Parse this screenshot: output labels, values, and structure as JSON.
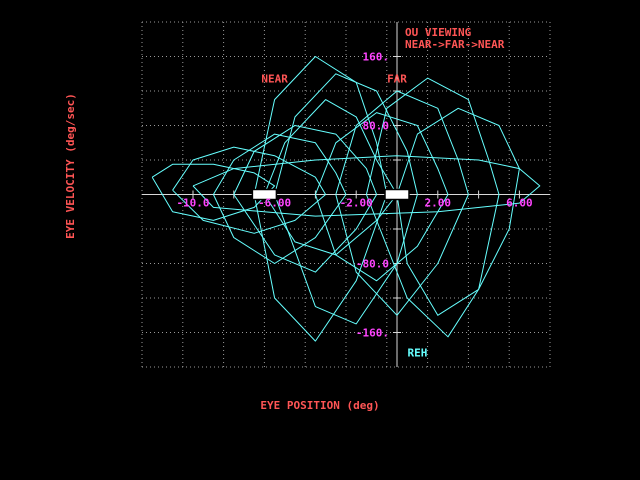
{
  "chart_data": {
    "type": "line",
    "title_lines": [
      "OU VIEWING",
      "NEAR->FAR->NEAR"
    ],
    "xlabel": "EYE POSITION (deg)",
    "ylabel": "EYE VELOCITY (deg/sec)",
    "xlim": [
      -12.5,
      7.5
    ],
    "ylim": [
      -200,
      200
    ],
    "grid": true,
    "x_ticks": [
      {
        "value": -10,
        "label": "-10.0"
      },
      {
        "value": -6,
        "label": "-6.00"
      },
      {
        "value": -2,
        "label": "-2.00"
      },
      {
        "value": 2,
        "label": "2.00"
      },
      {
        "value": 6,
        "label": "6.00"
      }
    ],
    "y_ticks": [
      {
        "value": 160,
        "label": "160."
      },
      {
        "value": 80,
        "label": "80.0"
      },
      {
        "value": -80,
        "label": "-80.0"
      },
      {
        "value": -160,
        "label": "-160."
      }
    ],
    "annotations": [
      {
        "text": "NEAR",
        "x": -6,
        "y": 130
      },
      {
        "text": "FAR",
        "x": 0,
        "y": 130
      },
      {
        "text": "REH",
        "x": 1,
        "y": -188
      }
    ],
    "markers": [
      {
        "name": "near-target",
        "x": -6.5,
        "y": 0
      },
      {
        "name": "far-target",
        "x": 0,
        "y": 0
      }
    ],
    "series": [
      {
        "values": [
          [
            -6.5,
            0
          ],
          [
            -5.5,
            60
          ],
          [
            -3.5,
            110
          ],
          [
            -2,
            90
          ],
          [
            -1,
            40
          ],
          [
            0,
            0
          ],
          [
            -1,
            -30
          ],
          [
            -3,
            -70
          ],
          [
            -5,
            -55
          ],
          [
            -6.5,
            0
          ]
        ]
      },
      {
        "values": [
          [
            -8,
            0
          ],
          [
            -7,
            50
          ],
          [
            -5,
            80
          ],
          [
            -3,
            70
          ],
          [
            -1.5,
            30
          ],
          [
            -1,
            0
          ],
          [
            -2,
            -40
          ],
          [
            -4,
            -90
          ],
          [
            -6,
            -70
          ],
          [
            -8,
            0
          ]
        ]
      },
      {
        "values": [
          [
            -3,
            0
          ],
          [
            -2,
            80
          ],
          [
            0,
            120
          ],
          [
            2,
            100
          ],
          [
            3,
            40
          ],
          [
            3.5,
            0
          ],
          [
            2,
            -80
          ],
          [
            0,
            -140
          ],
          [
            -2,
            -90
          ],
          [
            -3,
            0
          ]
        ]
      },
      {
        "values": [
          [
            -1.5,
            0
          ],
          [
            -0.5,
            100
          ],
          [
            1.5,
            135
          ],
          [
            3.5,
            110
          ],
          [
            4.5,
            40
          ],
          [
            5,
            0
          ],
          [
            4,
            -110
          ],
          [
            2.5,
            -165
          ],
          [
            0.5,
            -120
          ],
          [
            -1.5,
            0
          ]
        ]
      },
      {
        "values": [
          [
            -9,
            0
          ],
          [
            -8,
            40
          ],
          [
            -6,
            70
          ],
          [
            -4,
            60
          ],
          [
            -3,
            25
          ],
          [
            -2.5,
            0
          ],
          [
            -4,
            -50
          ],
          [
            -6,
            -80
          ],
          [
            -8,
            -50
          ],
          [
            -9,
            0
          ]
        ]
      },
      {
        "values": [
          [
            -11,
            5
          ],
          [
            -10,
            40
          ],
          [
            -8,
            55
          ],
          [
            -6,
            45
          ],
          [
            -4,
            20
          ],
          [
            -3.5,
            0
          ],
          [
            -5,
            -30
          ],
          [
            -7,
            -45
          ],
          [
            -9.5,
            -30
          ],
          [
            -11,
            5
          ]
        ]
      },
      {
        "values": [
          [
            -6,
            0
          ],
          [
            -5,
            90
          ],
          [
            -3,
            140
          ],
          [
            -1,
            120
          ],
          [
            0.5,
            50
          ],
          [
            1,
            0
          ],
          [
            0,
            -80
          ],
          [
            -2,
            -150
          ],
          [
            -4,
            -130
          ],
          [
            -6,
            0
          ]
        ]
      },
      {
        "values": [
          [
            -10,
            10
          ],
          [
            -8,
            30
          ],
          [
            -4,
            40
          ],
          [
            0,
            45
          ],
          [
            4,
            40
          ],
          [
            6,
            30
          ],
          [
            7,
            10
          ],
          [
            6,
            -10
          ],
          [
            2,
            -20
          ],
          [
            -4,
            -25
          ],
          [
            -9,
            -15
          ],
          [
            -10,
            10
          ]
        ]
      },
      {
        "values": [
          [
            0,
            0
          ],
          [
            1,
            70
          ],
          [
            3,
            100
          ],
          [
            5,
            80
          ],
          [
            6,
            30
          ],
          [
            5.5,
            -40
          ],
          [
            4,
            -110
          ],
          [
            2,
            -140
          ],
          [
            0.5,
            -80
          ],
          [
            0,
            0
          ]
        ]
      },
      {
        "values": [
          [
            -7,
            0
          ],
          [
            -6,
            110
          ],
          [
            -4,
            160
          ],
          [
            -2,
            130
          ],
          [
            -1,
            60
          ],
          [
            -0.5,
            0
          ],
          [
            -2,
            -100
          ],
          [
            -4,
            -170
          ],
          [
            -6,
            -120
          ],
          [
            -7,
            0
          ]
        ]
      },
      {
        "values": [
          [
            -4,
            0
          ],
          [
            -3,
            60
          ],
          [
            -1,
            95
          ],
          [
            1,
            80
          ],
          [
            2,
            30
          ],
          [
            2.5,
            0
          ],
          [
            1,
            -60
          ],
          [
            -1,
            -100
          ],
          [
            -3,
            -70
          ],
          [
            -4,
            0
          ]
        ]
      },
      {
        "values": [
          [
            -12,
            20
          ],
          [
            -11,
            35
          ],
          [
            -9,
            35
          ],
          [
            -7,
            25
          ],
          [
            -6,
            10
          ],
          [
            -7,
            -15
          ],
          [
            -9,
            -30
          ],
          [
            -11,
            -20
          ],
          [
            -12,
            20
          ]
        ]
      }
    ]
  }
}
